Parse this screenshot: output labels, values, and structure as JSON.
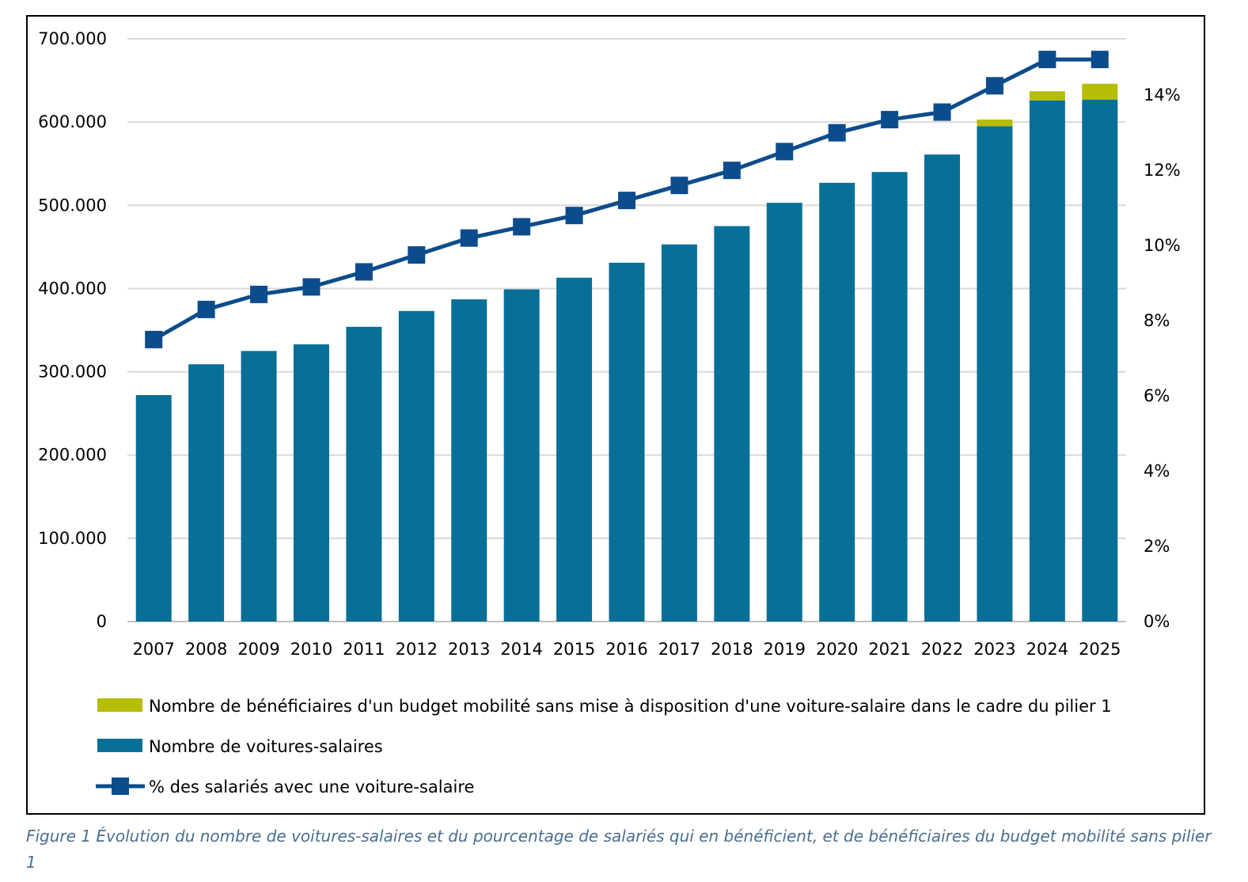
{
  "chart_data": {
    "type": "bar",
    "stacked": true,
    "categories": [
      "2007",
      "2008",
      "2009",
      "2010",
      "2011",
      "2012",
      "2013",
      "2014",
      "2015",
      "2016",
      "2017",
      "2018",
      "2019",
      "2020",
      "2021",
      "2022",
      "2023",
      "2024",
      "2025"
    ],
    "series": [
      {
        "name": "Nombre de voitures-salaires",
        "axis": "left",
        "kind": "bar",
        "color": "#086f96",
        "values": [
          272000,
          309000,
          325000,
          333000,
          354000,
          373000,
          387000,
          399000,
          413000,
          431000,
          453000,
          475000,
          503000,
          527000,
          540000,
          561000,
          595000,
          626000,
          627000
        ]
      },
      {
        "name": "Nombre de bénéficiaires d'un budget mobilité sans mise à disposition d'une voiture-salaire dans le cadre du pilier 1",
        "axis": "left",
        "kind": "bar",
        "color": "#b5bd06",
        "values": [
          0,
          0,
          0,
          0,
          0,
          0,
          0,
          0,
          0,
          0,
          0,
          0,
          0,
          0,
          0,
          0,
          8000,
          11000,
          19000
        ]
      },
      {
        "name": "% des salariés avec une voiture-salaire",
        "axis": "right",
        "kind": "line",
        "marker": "square",
        "color": "#0d4c8c",
        "values": [
          7.5,
          8.3,
          8.7,
          8.9,
          9.3,
          9.75,
          10.2,
          10.5,
          10.8,
          11.2,
          11.6,
          12.0,
          12.5,
          13.0,
          13.35,
          13.55,
          14.25,
          14.95,
          14.95
        ]
      }
    ],
    "y_left": {
      "ylim": [
        0,
        700000
      ],
      "ticks": [
        0,
        100000,
        200000,
        300000,
        400000,
        500000,
        600000,
        700000
      ],
      "tick_labels": [
        "0",
        "100.000",
        "200.000",
        "300.000",
        "400.000",
        "500.000",
        "600.000",
        "700.000"
      ]
    },
    "y_right": {
      "ylim": [
        0,
        15.5
      ],
      "ticks": [
        0,
        2,
        4,
        6,
        8,
        10,
        12,
        14
      ],
      "tick_labels": [
        "0%",
        "2%",
        "4%",
        "6%",
        "8%",
        "10%",
        "12%",
        "14%"
      ]
    },
    "grid": true,
    "legend_position": "bottom-left",
    "legend": [
      {
        "label": "Nombre de bénéficiaires d'un budget mobilité sans mise à disposition d'une voiture-salaire dans le cadre du pilier 1",
        "kind": "bar",
        "color": "#b5bd06"
      },
      {
        "label": "Nombre de voitures-salaires",
        "kind": "bar",
        "color": "#086f96"
      },
      {
        "label": "% des salariés avec une voiture-salaire",
        "kind": "line",
        "color": "#0d4c8c"
      }
    ],
    "title": "",
    "xlabel": "",
    "ylabel": ""
  },
  "caption": "Figure 1 Évolution du nombre de voitures-salaires et du pourcentage de salariés qui en bénéficient, et de bénéficiaires du budget mobilité sans pilier 1"
}
